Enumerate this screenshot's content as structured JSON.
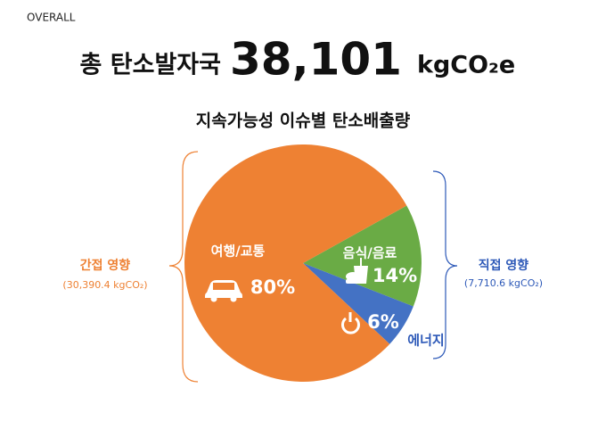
{
  "header": {
    "section": "OVERALL",
    "label": "총 탄소발자국",
    "total": "38,101",
    "unit": "kgCO₂e"
  },
  "chart_data": {
    "type": "pie",
    "title": "지속가능성 이슈별 탄소배출량",
    "categories": [
      "음식/음료",
      "에너지",
      "여행/교통"
    ],
    "values": [
      14,
      6,
      80
    ],
    "value_labels": [
      "14%",
      "6%",
      "80%"
    ],
    "colors": [
      "#6aab45",
      "#4472c4",
      "#ee8133"
    ]
  },
  "groups": {
    "indirect": {
      "name": "간접 영향",
      "amount": "(30,390.4 kgCO₂)"
    },
    "direct": {
      "name": "직접 영향",
      "amount": "(7,710.6 kgCO₂)"
    }
  }
}
